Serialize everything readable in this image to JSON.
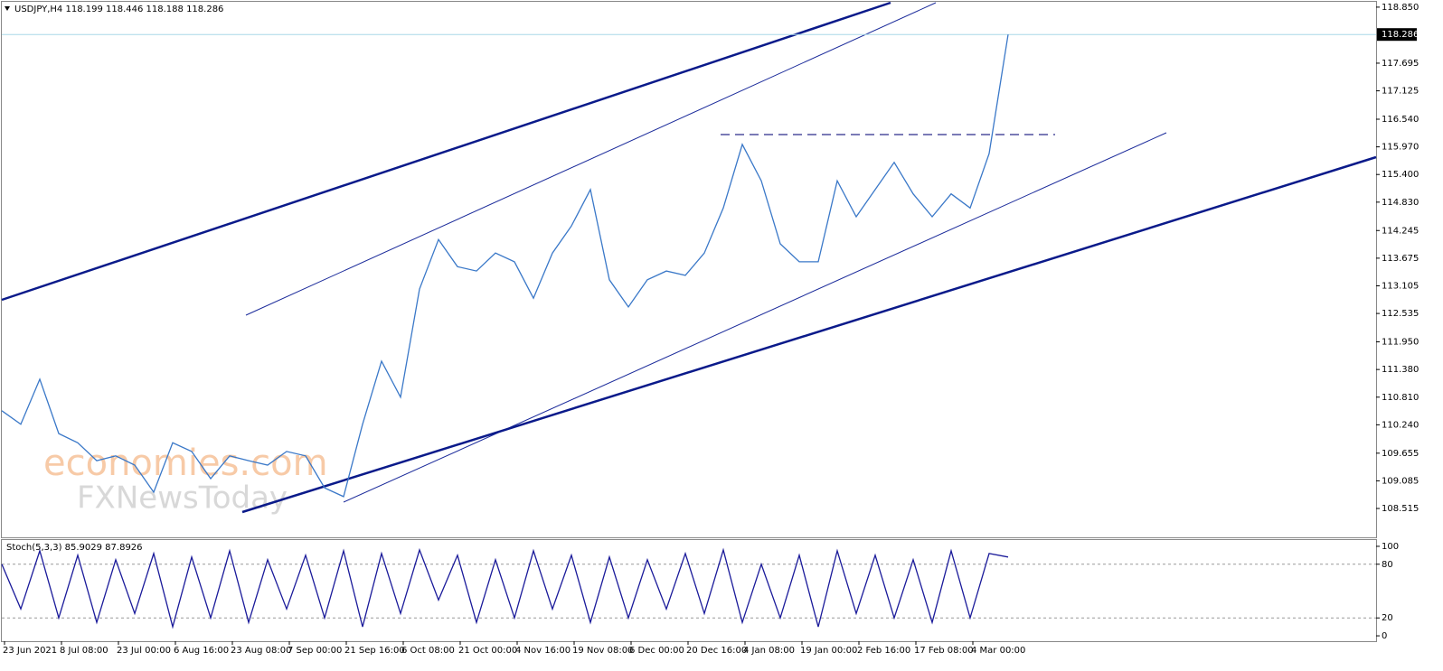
{
  "chart_data": [
    {
      "type": "line",
      "title": "USDJPY,H4  118.199 118.446 118.188 118.286",
      "color": "#3a78c8",
      "values": [
        110.53,
        110.25,
        111.18,
        110.06,
        109.87,
        109.5,
        109.6,
        109.41,
        108.85,
        109.87,
        109.69,
        109.13,
        109.6,
        109.5,
        109.41,
        109.69,
        109.6,
        108.94,
        108.76,
        110.25,
        111.55,
        110.81,
        113.04,
        114.06,
        113.5,
        113.41,
        113.78,
        113.6,
        112.85,
        113.78,
        114.34,
        115.09,
        113.23,
        112.67,
        113.23,
        113.41,
        113.32,
        113.78,
        114.71,
        116.02,
        115.27,
        113.97,
        113.6,
        113.6,
        115.27,
        114.53,
        115.09,
        115.65,
        115.0,
        114.53,
        115.0,
        114.71,
        115.83,
        118.286
      ],
      "ylim": [
        107.92,
        118.96
      ],
      "yticks": [
        {
          "value": 118.85,
          "label": "118.850"
        },
        {
          "value": 117.695,
          "label": "117.695"
        },
        {
          "value": 117.125,
          "label": "117.125"
        },
        {
          "value": 116.54,
          "label": "116.540"
        },
        {
          "value": 115.97,
          "label": "115.970"
        },
        {
          "value": 115.4,
          "label": "115.400"
        },
        {
          "value": 114.83,
          "label": "114.830"
        },
        {
          "value": 114.245,
          "label": "114.245"
        },
        {
          "value": 113.675,
          "label": "113.675"
        },
        {
          "value": 113.105,
          "label": "113.105"
        },
        {
          "value": 112.535,
          "label": "112.535"
        },
        {
          "value": 111.95,
          "label": "111.950"
        },
        {
          "value": 111.38,
          "label": "111.380"
        },
        {
          "value": 110.81,
          "label": "110.810"
        },
        {
          "value": 110.24,
          "label": "110.240"
        },
        {
          "value": 109.655,
          "label": "109.655"
        },
        {
          "value": 109.085,
          "label": "109.085"
        },
        {
          "value": 108.515,
          "label": "108.515"
        }
      ],
      "last_price": {
        "value": 118.286,
        "label": "118.286"
      }
    },
    {
      "type": "line",
      "title": "Stoch(5,3,3) 85.9029 87.8926",
      "color": "#1a1a9a",
      "values": [
        80,
        30,
        95,
        20,
        90,
        15,
        85,
        25,
        92,
        10,
        88,
        20,
        95,
        15,
        85,
        30,
        90,
        20,
        95,
        10,
        92,
        25,
        96,
        40,
        90,
        15,
        85,
        20,
        95,
        30,
        90,
        15,
        88,
        20,
        85,
        30,
        92,
        25,
        96,
        15,
        80,
        20,
        90,
        10,
        95,
        25,
        90,
        20,
        85,
        15,
        95,
        20,
        92,
        88
      ],
      "ylim": [
        -6,
        107
      ],
      "yticks": [
        100,
        80,
        20,
        0
      ]
    }
  ],
  "time_axis": [
    "23 Jun 2021",
    "8 Jul 08:00",
    "23 Jul 00:00",
    "6 Aug 16:00",
    "23 Aug 08:00",
    "7 Sep 00:00",
    "21 Sep 16:00",
    "6 Oct 08:00",
    "21 Oct 00:00",
    "4 Nov 16:00",
    "19 Nov 08:00",
    "6 Dec 00:00",
    "20 Dec 16:00",
    "4 Jan 08:00",
    "19 Jan 00:00",
    "2 Feb 16:00",
    "17 Feb 08:00",
    "4 Mar 00:00"
  ],
  "watermark": {
    "brand": "economies.com",
    "source": "FXNewsToday"
  }
}
